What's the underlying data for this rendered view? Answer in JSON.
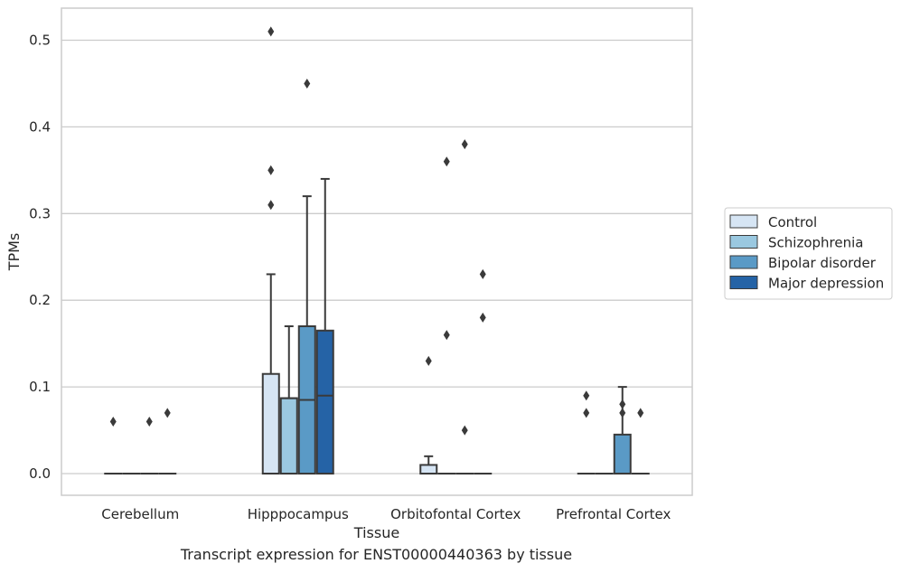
{
  "chart_data": {
    "type": "boxplot",
    "xlabel": "Tissue",
    "ylabel": "TPMs",
    "caption": "Transcript expression for ENST00000440363 by tissue",
    "ylim": [
      -0.025,
      0.537
    ],
    "yticks": [
      0.0,
      0.1,
      0.2,
      0.3,
      0.4,
      0.5
    ],
    "ytick_labels": [
      "0.0",
      "0.1",
      "0.2",
      "0.3",
      "0.4",
      "0.5"
    ],
    "grid": "horizontal",
    "legend_position": "right",
    "categories": [
      "Cerebellum",
      "Hipppocampus",
      "Orbitofontal Cortex",
      "Prefrontal Cortex"
    ],
    "series": [
      {
        "name": "Control",
        "color": "#d6e5f4",
        "boxes": [
          {
            "q1": 0,
            "median": 0,
            "q3": 0,
            "whisker_low": 0,
            "whisker_high": 0,
            "outliers": [
              0.06
            ]
          },
          {
            "q1": 0,
            "median": 0,
            "q3": 0.115,
            "whisker_low": 0,
            "whisker_high": 0.23,
            "outliers": [
              0.31,
              0.35,
              0.51
            ]
          },
          {
            "q1": 0,
            "median": 0,
            "q3": 0.01,
            "whisker_low": 0,
            "whisker_high": 0.02,
            "outliers": [
              0.13
            ]
          },
          {
            "q1": 0,
            "median": 0,
            "q3": 0,
            "whisker_low": 0,
            "whisker_high": 0,
            "outliers": [
              0.07,
              0.09
            ]
          }
        ]
      },
      {
        "name": "Schizophrenia",
        "color": "#9ac8e0",
        "boxes": [
          {
            "q1": 0,
            "median": 0,
            "q3": 0,
            "whisker_low": 0,
            "whisker_high": 0,
            "outliers": []
          },
          {
            "q1": 0,
            "median": 0.087,
            "q3": 0.087,
            "whisker_low": 0,
            "whisker_high": 0.17,
            "outliers": []
          },
          {
            "q1": 0,
            "median": 0,
            "q3": 0,
            "whisker_low": 0,
            "whisker_high": 0,
            "outliers": [
              0.16,
              0.36
            ]
          },
          {
            "q1": 0,
            "median": 0,
            "q3": 0,
            "whisker_low": 0,
            "whisker_high": 0,
            "outliers": []
          }
        ]
      },
      {
        "name": "Bipolar disorder",
        "color": "#5a9ac6",
        "boxes": [
          {
            "q1": 0,
            "median": 0,
            "q3": 0,
            "whisker_low": 0,
            "whisker_high": 0,
            "outliers": [
              0.06
            ]
          },
          {
            "q1": 0,
            "median": 0.085,
            "q3": 0.17,
            "whisker_low": 0,
            "whisker_high": 0.32,
            "outliers": [
              0.45
            ]
          },
          {
            "q1": 0,
            "median": 0,
            "q3": 0,
            "whisker_low": 0,
            "whisker_high": 0,
            "outliers": [
              0.05,
              0.38
            ]
          },
          {
            "q1": 0,
            "median": 0,
            "q3": 0.045,
            "whisker_low": 0,
            "whisker_high": 0.1,
            "outliers": [
              0.07,
              0.08
            ]
          }
        ]
      },
      {
        "name": "Major depression",
        "color": "#2563a6",
        "boxes": [
          {
            "q1": 0,
            "median": 0,
            "q3": 0,
            "whisker_low": 0,
            "whisker_high": 0,
            "outliers": [
              0.07
            ]
          },
          {
            "q1": 0,
            "median": 0.09,
            "q3": 0.165,
            "whisker_low": 0,
            "whisker_high": 0.34,
            "outliers": []
          },
          {
            "q1": 0,
            "median": 0,
            "q3": 0,
            "whisker_low": 0,
            "whisker_high": 0,
            "outliers": [
              0.18,
              0.23
            ]
          },
          {
            "q1": 0,
            "median": 0,
            "q3": 0,
            "whisker_low": 0,
            "whisker_high": 0,
            "outliers": [
              0.07
            ]
          }
        ]
      }
    ]
  }
}
